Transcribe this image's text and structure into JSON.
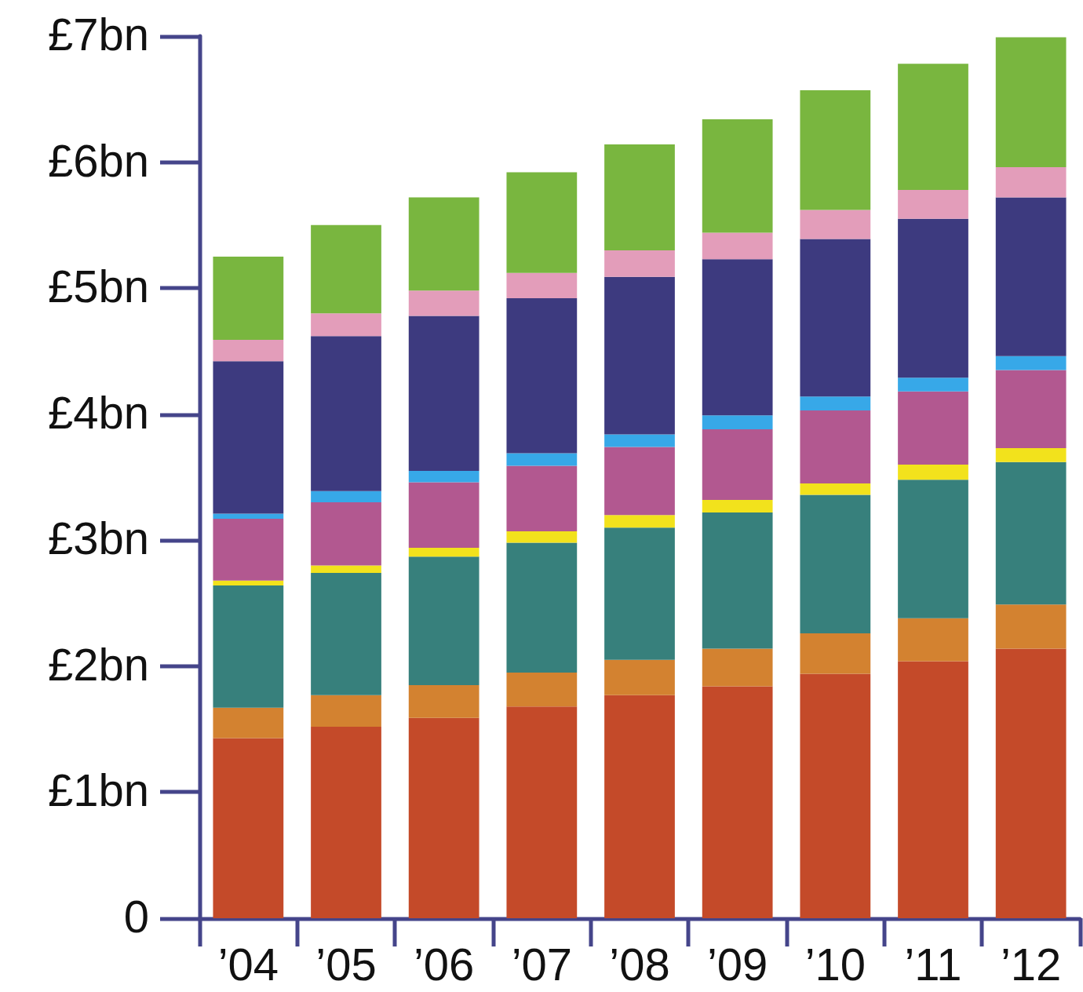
{
  "chart_data": {
    "type": "bar",
    "stacked": true,
    "categories": [
      "’04",
      "’05",
      "’06",
      "’07",
      "’08",
      "’09",
      "’10",
      "’11",
      "’12"
    ],
    "series": [
      {
        "color": "#c44a29",
        "values": [
          1.43,
          1.52,
          1.59,
          1.68,
          1.77,
          1.84,
          1.94,
          2.04,
          2.14
        ]
      },
      {
        "color": "#d38230",
        "values": [
          0.24,
          0.25,
          0.26,
          0.27,
          0.28,
          0.3,
          0.32,
          0.34,
          0.35
        ]
      },
      {
        "color": "#37807c",
        "values": [
          0.97,
          0.97,
          1.02,
          1.03,
          1.05,
          1.08,
          1.1,
          1.1,
          1.13
        ]
      },
      {
        "color": "#f2e21c",
        "values": [
          0.04,
          0.06,
          0.07,
          0.09,
          0.1,
          0.1,
          0.09,
          0.12,
          0.11
        ]
      },
      {
        "color": "#b25890",
        "values": [
          0.49,
          0.5,
          0.52,
          0.52,
          0.54,
          0.56,
          0.58,
          0.58,
          0.62
        ]
      },
      {
        "color": "#37a8e8",
        "values": [
          0.04,
          0.09,
          0.09,
          0.1,
          0.1,
          0.11,
          0.11,
          0.11,
          0.11
        ]
      },
      {
        "color": "#3d3a7f",
        "values": [
          1.21,
          1.23,
          1.23,
          1.23,
          1.25,
          1.24,
          1.25,
          1.26,
          1.26
        ]
      },
      {
        "color": "#e39dba",
        "values": [
          0.17,
          0.18,
          0.2,
          0.2,
          0.21,
          0.21,
          0.23,
          0.23,
          0.24
        ]
      },
      {
        "color": "#79b63f",
        "values": [
          0.66,
          0.7,
          0.74,
          0.8,
          0.84,
          0.9,
          0.95,
          1.0,
          1.03
        ]
      }
    ],
    "ylim": [
      0,
      7
    ],
    "yticks": [
      0,
      {
        "value": 1,
        "label": "£1bn"
      },
      {
        "value": 2,
        "label": "£2bn"
      },
      {
        "value": 3,
        "label": "£3bn"
      },
      {
        "value": 4,
        "label": "£4bn"
      },
      {
        "value": 5,
        "label": "£5bn"
      },
      {
        "value": 6,
        "label": "£6bn"
      },
      {
        "value": 7,
        "label": "£7bn"
      }
    ],
    "grid": false
  }
}
